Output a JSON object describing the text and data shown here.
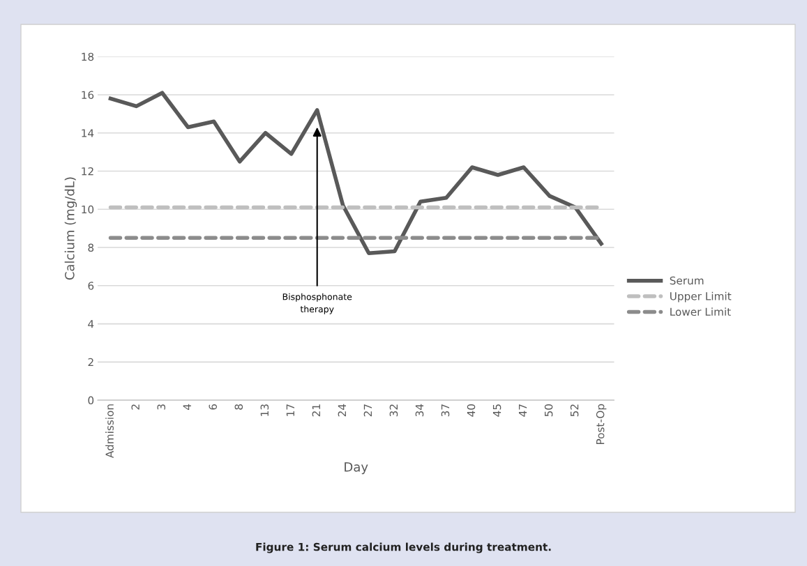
{
  "chart_data": {
    "type": "line",
    "xlabel": "Day",
    "ylabel": "Calcium (mg/dL)",
    "categories": [
      "Admission",
      "2",
      "3",
      "4",
      "6",
      "8",
      "13",
      "17",
      "21",
      "24",
      "27",
      "32",
      "34",
      "37",
      "40",
      "45",
      "47",
      "50",
      "52",
      "Post-Op"
    ],
    "series": [
      {
        "name": "Serum",
        "color": "#595959",
        "line_style": "solid",
        "values": [
          15.8,
          15.4,
          16.1,
          14.3,
          14.6,
          12.5,
          14.0,
          12.9,
          15.2,
          10.2,
          7.7,
          7.8,
          10.4,
          10.6,
          12.2,
          11.8,
          12.2,
          10.7,
          10.1,
          8.2
        ]
      },
      {
        "name": "Upper Limit",
        "color": "#bfbfbf",
        "line_style": "dashed",
        "values": [
          10.1,
          10.1,
          10.1,
          10.1,
          10.1,
          10.1,
          10.1,
          10.1,
          10.1,
          10.1,
          10.1,
          10.1,
          10.1,
          10.1,
          10.1,
          10.1,
          10.1,
          10.1,
          10.1,
          10.1
        ]
      },
      {
        "name": "Lower Limit",
        "color": "#8c8c8c",
        "line_style": "dashed",
        "values": [
          8.5,
          8.5,
          8.5,
          8.5,
          8.5,
          8.5,
          8.5,
          8.5,
          8.5,
          8.5,
          8.5,
          8.5,
          8.5,
          8.5,
          8.5,
          8.5,
          8.5,
          8.5,
          8.5,
          8.5
        ]
      }
    ],
    "ylim": [
      0,
      18
    ],
    "yticks": [
      0,
      2,
      4,
      6,
      8,
      10,
      12,
      14,
      16,
      18
    ],
    "grid": "y",
    "legend": "right",
    "marker": "none",
    "annotations": [
      {
        "text": "Bisphosphonate\ntherapy",
        "x": "21",
        "y": 14.3
      },
      "Figure 1: Serum calcium levels during treatment."
    ]
  }
}
